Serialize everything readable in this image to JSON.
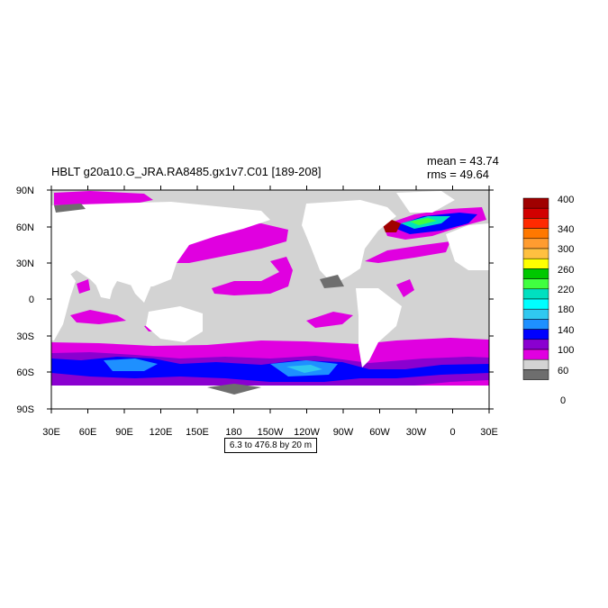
{
  "title": "HBLT g20a10.G_JRA.RA8485.gx1v7.C01 [189-208]",
  "stats": {
    "mean": "mean = 43.74",
    "rms": "rms = 49.64"
  },
  "contour_info": "6.3 to 476.8 by 20 m",
  "lat_labels": [
    "90N",
    "60N",
    "30N",
    "0",
    "30S",
    "60S",
    "90S"
  ],
  "lon_labels": [
    "30E",
    "60E",
    "90E",
    "120E",
    "150E",
    "180",
    "150W",
    "120W",
    "90W",
    "60W",
    "30W",
    "0",
    "30E"
  ],
  "colorbar": {
    "labels": [
      "400",
      "340",
      "300",
      "260",
      "220",
      "180",
      "140",
      "100",
      "60",
      "0"
    ],
    "colors": [
      "#a00000",
      "#d20000",
      "#ff2a00",
      "#ff7800",
      "#ff9c30",
      "#ffc040",
      "#ffff00",
      "#00c800",
      "#40ff40",
      "#00e0c0",
      "#00ffff",
      "#30c8f0",
      "#1e90ff",
      "#0000ff",
      "#8a00d0",
      "#e000e0",
      "#d3d3d3",
      "#6e6e6e"
    ]
  },
  "map_colors": {
    "ocean_base": "#d3d3d3",
    "land": "#ffffff",
    "magenta": "#e000e0",
    "purple": "#8a00d0",
    "blue": "#0000ff",
    "dodger": "#1e90ff",
    "cyan": "#30c8f0",
    "dark": "#6e6e6e"
  }
}
